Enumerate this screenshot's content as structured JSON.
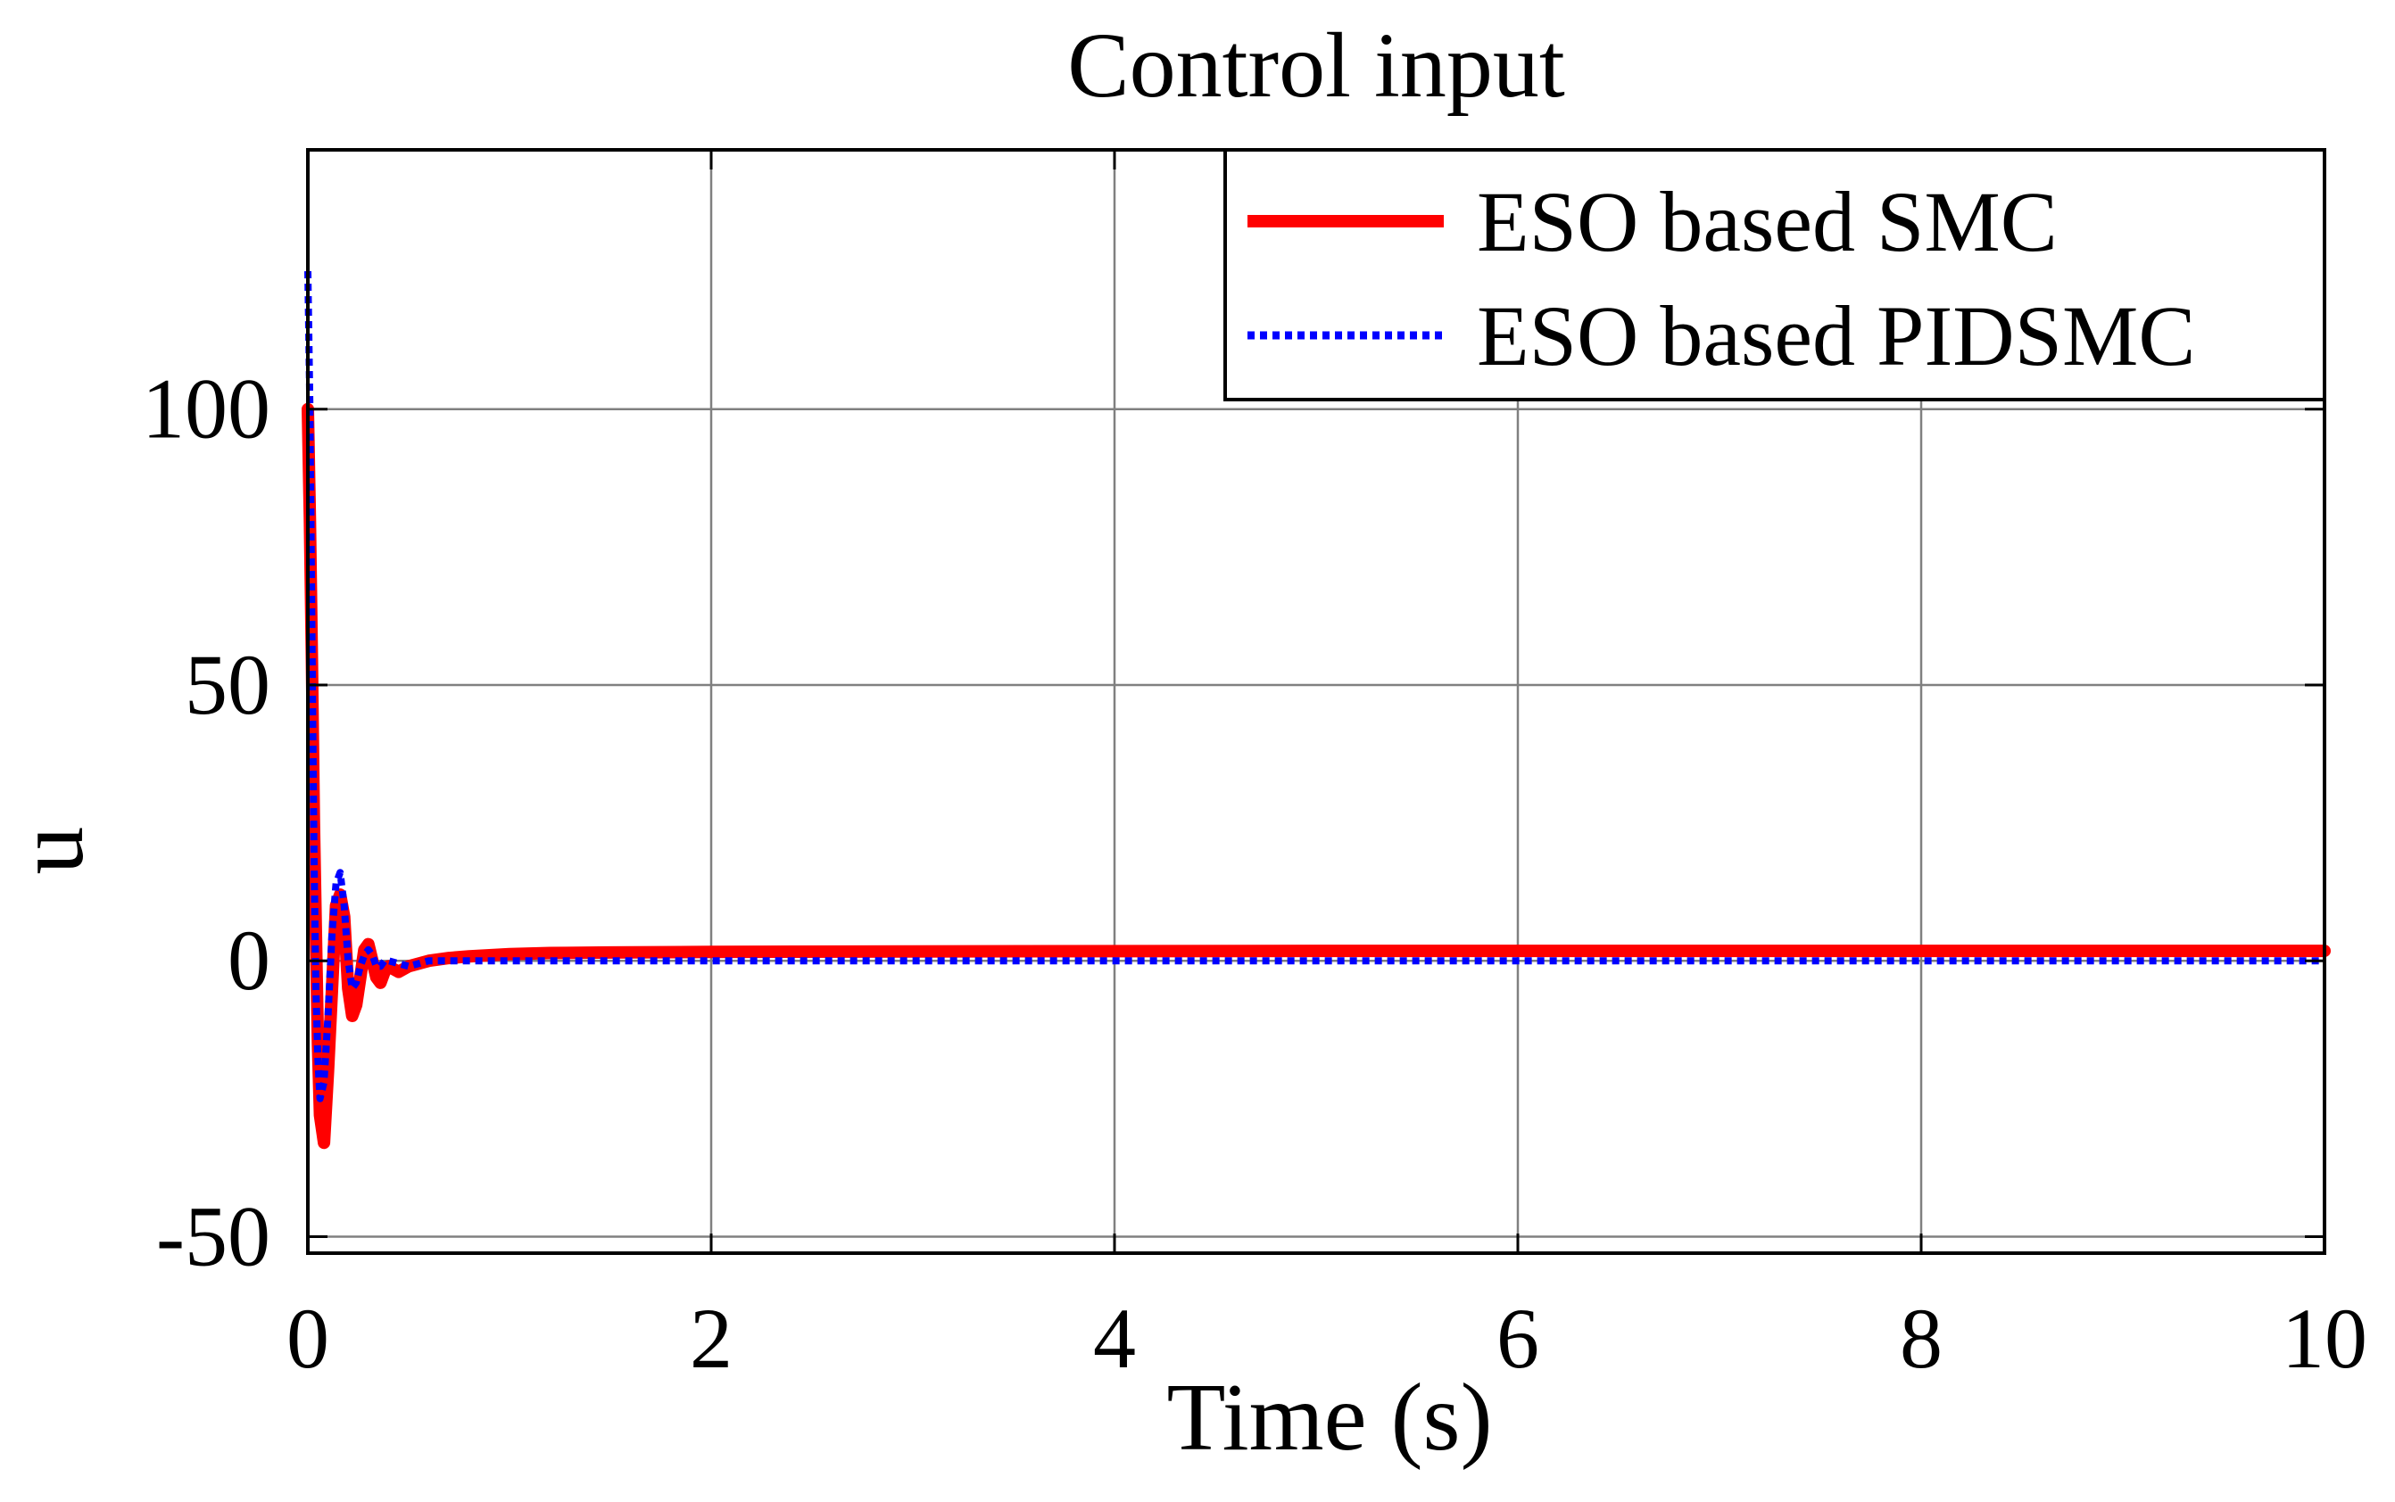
{
  "chart_data": {
    "type": "line",
    "title": "Control input",
    "xlabel": "Time (s)",
    "ylabel": "u",
    "xlim": [
      0,
      10
    ],
    "ylim": [
      -53,
      147
    ],
    "xticks": [
      0,
      2,
      4,
      6,
      8,
      10
    ],
    "xtick_labels": [
      "0",
      "2",
      "4",
      "6",
      "8",
      "10"
    ],
    "yticks": [
      -50,
      0,
      50,
      100
    ],
    "ytick_labels": [
      "-50",
      "0",
      "50",
      "100"
    ],
    "grid": true,
    "legend_position": "top-right",
    "series": [
      {
        "name": "ESO based SMC",
        "color": "#ff0000",
        "style": "solid",
        "x": [
          0,
          0.01,
          0.02,
          0.03,
          0.04,
          0.05,
          0.06,
          0.08,
          0.1,
          0.12,
          0.14,
          0.16,
          0.18,
          0.2,
          0.22,
          0.24,
          0.26,
          0.28,
          0.3,
          0.32,
          0.34,
          0.36,
          0.38,
          0.4,
          0.45,
          0.5,
          0.6,
          0.7,
          0.8,
          0.9,
          1.0,
          1.2,
          1.5,
          2.0,
          3.0,
          5.0,
          7.0,
          10.0
        ],
        "y": [
          100,
          80,
          55,
          25,
          5,
          -15,
          -28,
          -33,
          -20,
          -5,
          10,
          12,
          8,
          -5,
          -10,
          -8,
          -3,
          2,
          3,
          0,
          -3,
          -4,
          -2,
          -1,
          -2,
          -1,
          0,
          0.5,
          0.8,
          1,
          1.2,
          1.4,
          1.5,
          1.6,
          1.7,
          1.8,
          1.8,
          1.8
        ]
      },
      {
        "name": "ESO based PIDSMC",
        "color": "#0000ff",
        "style": "dotted",
        "x": [
          0,
          0.01,
          0.02,
          0.03,
          0.04,
          0.05,
          0.06,
          0.08,
          0.1,
          0.12,
          0.14,
          0.16,
          0.18,
          0.2,
          0.22,
          0.24,
          0.26,
          0.28,
          0.3,
          0.32,
          0.34,
          0.36,
          0.38,
          0.4,
          0.5,
          0.6,
          0.8,
          1.0,
          1.5,
          2.0,
          3.0,
          5.0,
          7.0,
          10.0
        ],
        "y": [
          125,
          100,
          60,
          20,
          -5,
          -18,
          -25,
          -22,
          -10,
          5,
          14,
          16,
          10,
          0,
          -5,
          -4,
          -1,
          1,
          2,
          1,
          -1,
          -1,
          0,
          0,
          -1,
          0,
          0,
          0,
          0,
          0,
          0,
          0,
          0,
          0
        ]
      }
    ]
  }
}
